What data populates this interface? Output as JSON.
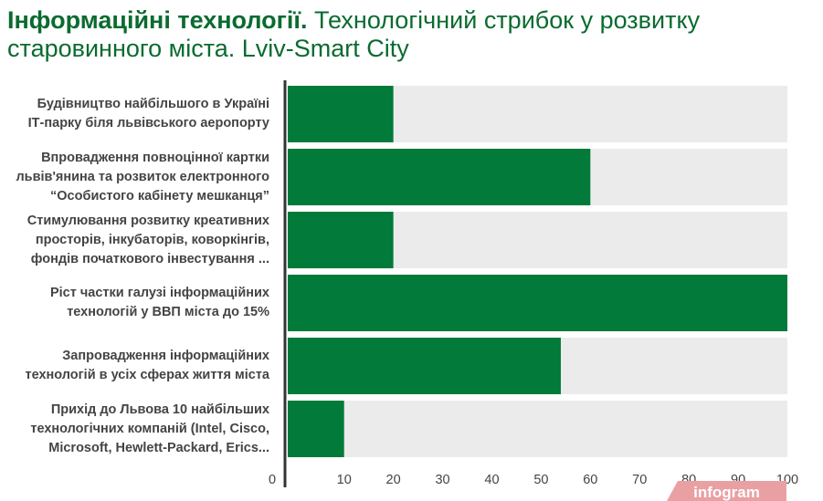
{
  "title": {
    "bold": "Інформаційні технології.",
    "rest": " Технологічний стрибок у розвитку старовинного міста. Lviv-Smart City"
  },
  "chart_data": {
    "type": "bar",
    "orientation": "horizontal",
    "categories": [
      [
        "Будівництво найбільшого в Україні",
        "ІТ-парку біля львівського аеропорту"
      ],
      [
        "Впровадження повноцінної картки",
        "львів'янина та розвиток електронного",
        "“Особистого кабінету мешканця”"
      ],
      [
        "Стимулювання розвитку креативних",
        "просторів, інкубаторів, коворкінгів,",
        "фондів початкового інвестування ..."
      ],
      [
        "Ріст частки галузі інформаційних",
        "технологій у ВВП міста до 15%"
      ],
      [
        "Запровадження інформаційних",
        "технологій в усіх сферах життя міста"
      ],
      [
        "Прихід до Львова 10 найбільших",
        "технологічних компаній (Intel, Cisco,",
        "Microsoft, Hewlett-Packard, Erics..."
      ]
    ],
    "values": [
      20,
      60,
      20,
      100,
      54,
      10
    ],
    "xlim": [
      -2,
      100
    ],
    "xticks": [
      0,
      10,
      20,
      30,
      40,
      50,
      60,
      70,
      80,
      90,
      100
    ],
    "bar_color": "#017a3a",
    "track_color": "#ebebeb",
    "axis_color": "#333333",
    "grid": false
  },
  "watermark": "infogram"
}
